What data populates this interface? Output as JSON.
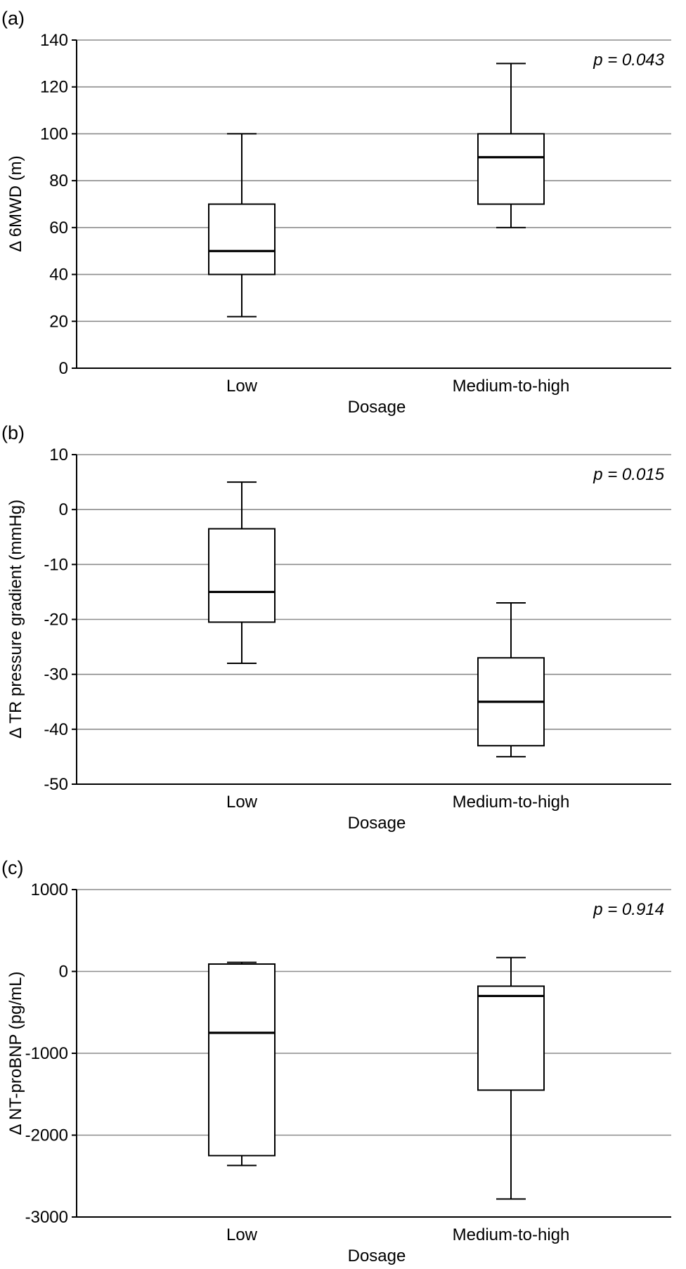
{
  "chart_data": [
    {
      "type": "box",
      "panel_label": "(a)",
      "ylabel": "Δ 6MWD (m)",
      "xlabel": "Dosage",
      "categories": [
        "Low",
        "Medium-to-high"
      ],
      "ylim": [
        0,
        140
      ],
      "yticks": [
        0,
        20,
        40,
        60,
        80,
        100,
        120,
        140
      ],
      "ytick_labels": [
        "0",
        "20",
        "40",
        "60",
        "80",
        "100",
        "120",
        "140"
      ],
      "grid": true,
      "annotation": "p = 0.043",
      "boxes": [
        {
          "category": "Low",
          "min": 22,
          "q1": 40,
          "median": 50,
          "q3": 70,
          "max": 100
        },
        {
          "category": "Medium-to-high",
          "min": 60,
          "q1": 70,
          "median": 90,
          "q3": 100,
          "max": 130
        }
      ]
    },
    {
      "type": "box",
      "panel_label": "(b)",
      "ylabel": "Δ TR pressure gradient (mmHg)",
      "xlabel": "Dosage",
      "categories": [
        "Low",
        "Medium-to-high"
      ],
      "ylim": [
        -50,
        10
      ],
      "yticks": [
        -50,
        -40,
        -30,
        -20,
        -10,
        0,
        10
      ],
      "ytick_labels": [
        "-50",
        "-40",
        "-30",
        "-20",
        "-10",
        "0",
        "10"
      ],
      "grid": true,
      "annotation": "p = 0.015",
      "boxes": [
        {
          "category": "Low",
          "min": -28,
          "q1": -20.5,
          "median": -15,
          "q3": -3.5,
          "max": 5
        },
        {
          "category": "Medium-to-high",
          "min": -45,
          "q1": -43,
          "median": -35,
          "q3": -27,
          "max": -17
        }
      ]
    },
    {
      "type": "box",
      "panel_label": "(c)",
      "ylabel": "Δ NT-proBNP (pg/mL)",
      "xlabel": "Dosage",
      "categories": [
        "Low",
        "Medium-to-high"
      ],
      "ylim": [
        -3000,
        1000
      ],
      "yticks": [
        -3000,
        -2000,
        -1000,
        0,
        1000
      ],
      "ytick_labels": [
        "-3000",
        "-2000",
        "-1000",
        "0",
        "1000"
      ],
      "grid": true,
      "annotation": "p = 0.914",
      "boxes": [
        {
          "category": "Low",
          "min": -2370,
          "q1": -2250,
          "median": -750,
          "q3": 90,
          "max": 110
        },
        {
          "category": "Medium-to-high",
          "min": -2780,
          "q1": -1450,
          "median": -300,
          "q3": -180,
          "max": 170
        }
      ]
    }
  ]
}
